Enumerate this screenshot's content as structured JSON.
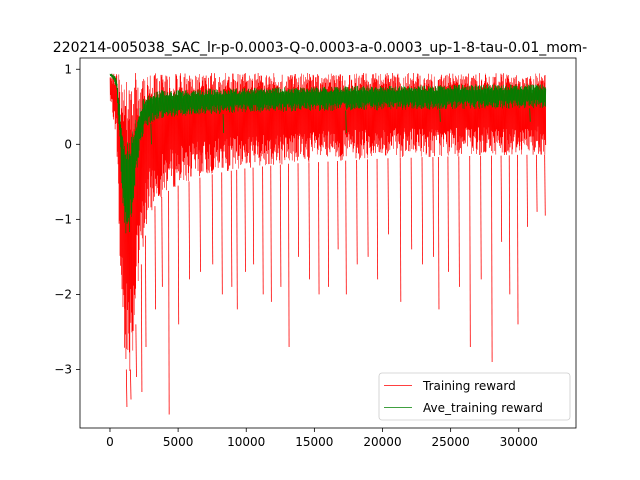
{
  "chart_data": {
    "type": "line",
    "title": "220214-005038_SAC_lr-p-0.0003-Q-0.0003-a-0.0003_up-1-8-tau-0.01_mom-",
    "xlabel": "",
    "ylabel": "",
    "xlim": [
      -2200,
      34200
    ],
    "ylim": [
      -3.78,
      1.15
    ],
    "xticks": [
      0,
      5000,
      10000,
      15000,
      20000,
      25000,
      30000
    ],
    "xtick_labels": [
      "0",
      "5000",
      "10000",
      "15000",
      "20000",
      "25000",
      "30000"
    ],
    "yticks": [
      1,
      0,
      -1,
      -2,
      -3
    ],
    "ytick_labels": [
      "1",
      "0",
      "−1",
      "−2",
      "−3"
    ],
    "grid": false,
    "legend": {
      "position": "lower-right",
      "entries": [
        "Training reward",
        "Ave_training reward"
      ]
    },
    "series": [
      {
        "name": "Training reward",
        "color": "#ff0000",
        "line_width": 0.5,
        "style": "dense noisy band (upper ~0.95, lower envelope below) with downward spikes",
        "x": [
          0,
          300,
          500,
          700,
          900,
          1100,
          1300,
          1500,
          1700,
          1900,
          2100,
          2300,
          2500,
          2800,
          3200,
          3700,
          4300,
          5000,
          6000,
          7000,
          8000,
          9000,
          10000,
          11000,
          12000,
          13000,
          14000,
          15000,
          16000,
          17000,
          18000,
          19000,
          20000,
          21000,
          22000,
          23000,
          24000,
          25000,
          26000,
          27000,
          28000,
          29000,
          30000,
          31000,
          32000
        ],
        "upper": [
          0.95,
          0.95,
          0.95,
          0.95,
          0.95,
          0.95,
          0.95,
          0.95,
          0.95,
          0.95,
          0.95,
          0.95,
          0.95,
          0.95,
          0.95,
          0.95,
          0.95,
          0.95,
          0.95,
          0.95,
          0.95,
          0.95,
          0.95,
          0.95,
          0.95,
          0.95,
          0.95,
          0.95,
          0.95,
          0.95,
          0.95,
          0.95,
          0.95,
          0.95,
          0.95,
          0.95,
          0.95,
          0.95,
          0.95,
          0.95,
          0.95,
          0.95,
          0.95,
          0.95,
          0.95
        ],
        "lower": [
          0.55,
          0.3,
          0.0,
          -1.6,
          -2.5,
          -2.9,
          -3.1,
          -3.0,
          -2.8,
          -2.4,
          -2.0,
          -1.6,
          -1.3,
          -1.05,
          -0.85,
          -0.72,
          -0.62,
          -0.55,
          -0.48,
          -0.42,
          -0.38,
          -0.35,
          -0.32,
          -0.3,
          -0.28,
          -0.26,
          -0.25,
          -0.24,
          -0.23,
          -0.22,
          -0.21,
          -0.2,
          -0.19,
          -0.18,
          -0.18,
          -0.17,
          -0.17,
          -0.16,
          -0.16,
          -0.15,
          -0.15,
          -0.15,
          -0.14,
          -0.14,
          -0.14
        ],
        "spikes": [
          [
            1200,
            -3.5
          ],
          [
            1500,
            -3.4
          ],
          [
            1900,
            -3.1
          ],
          [
            2300,
            -3.3
          ],
          [
            2600,
            -2.7
          ],
          [
            3300,
            -2.2
          ],
          [
            3800,
            -1.9
          ],
          [
            4300,
            -3.6
          ],
          [
            5000,
            -2.4
          ],
          [
            5800,
            -1.8
          ],
          [
            6600,
            -1.7
          ],
          [
            7500,
            -1.6
          ],
          [
            8200,
            -2.0
          ],
          [
            8900,
            -1.9
          ],
          [
            9300,
            -2.2
          ],
          [
            9900,
            -1.7
          ],
          [
            10500,
            -1.6
          ],
          [
            11200,
            -2.0
          ],
          [
            11800,
            -2.1
          ],
          [
            12500,
            -1.9
          ],
          [
            13100,
            -2.7
          ],
          [
            13800,
            -1.5
          ],
          [
            14600,
            -1.8
          ],
          [
            15300,
            -2.0
          ],
          [
            16000,
            -1.9
          ],
          [
            16700,
            -1.4
          ],
          [
            17300,
            -2.0
          ],
          [
            18100,
            -1.6
          ],
          [
            18900,
            -1.5
          ],
          [
            19600,
            -1.8
          ],
          [
            20400,
            -1.2
          ],
          [
            21300,
            -2.1
          ],
          [
            22100,
            -1.4
          ],
          [
            22900,
            -1.6
          ],
          [
            23700,
            -1.5
          ],
          [
            24100,
            -2.2
          ],
          [
            24800,
            -1.7
          ],
          [
            25600,
            -1.9
          ],
          [
            26400,
            -2.7
          ],
          [
            27200,
            -1.8
          ],
          [
            28000,
            -2.9
          ],
          [
            28700,
            -1.3
          ],
          [
            29300,
            -2.0
          ],
          [
            29900,
            -2.4
          ],
          [
            30600,
            -1.1
          ],
          [
            31300,
            -0.9
          ],
          [
            31900,
            -0.95
          ]
        ]
      },
      {
        "name": "Ave_training reward",
        "color": "#008000",
        "line_width": 0.5,
        "style": "noisy moving-average band",
        "x": [
          0,
          300,
          500,
          700,
          900,
          1100,
          1300,
          1500,
          1700,
          1900,
          2100,
          2300,
          2500,
          2800,
          3200,
          3700,
          4300,
          5000,
          6000,
          7000,
          8000,
          9000,
          10000,
          11000,
          12000,
          13000,
          14000,
          15000,
          16000,
          17000,
          18000,
          19000,
          20000,
          21000,
          22000,
          23000,
          24000,
          25000,
          26000,
          27000,
          28000,
          29000,
          30000,
          31000,
          32000
        ],
        "upper": [
          0.95,
          0.93,
          0.88,
          0.6,
          0.3,
          0.1,
          0.05,
          0.1,
          0.2,
          0.35,
          0.45,
          0.55,
          0.62,
          0.68,
          0.7,
          0.72,
          0.72,
          0.73,
          0.73,
          0.74,
          0.74,
          0.75,
          0.75,
          0.75,
          0.76,
          0.76,
          0.76,
          0.77,
          0.77,
          0.77,
          0.78,
          0.78,
          0.78,
          0.78,
          0.79,
          0.79,
          0.79,
          0.79,
          0.8,
          0.8,
          0.8,
          0.8,
          0.8,
          0.8,
          0.8
        ],
        "lower": [
          0.9,
          0.85,
          0.7,
          0.0,
          -0.9,
          -1.25,
          -1.3,
          -1.1,
          -0.8,
          -0.5,
          -0.2,
          0.0,
          0.15,
          0.25,
          0.3,
          0.33,
          0.35,
          0.37,
          0.38,
          0.4,
          0.4,
          0.41,
          0.42,
          0.42,
          0.43,
          0.43,
          0.44,
          0.44,
          0.44,
          0.45,
          0.45,
          0.45,
          0.45,
          0.46,
          0.46,
          0.46,
          0.46,
          0.47,
          0.47,
          0.47,
          0.47,
          0.47,
          0.48,
          0.48,
          0.48
        ],
        "dips": [
          [
            3000,
            0.0
          ],
          [
            8300,
            0.15
          ],
          [
            17300,
            0.15
          ],
          [
            24200,
            0.3
          ],
          [
            30800,
            0.3
          ]
        ]
      }
    ]
  }
}
